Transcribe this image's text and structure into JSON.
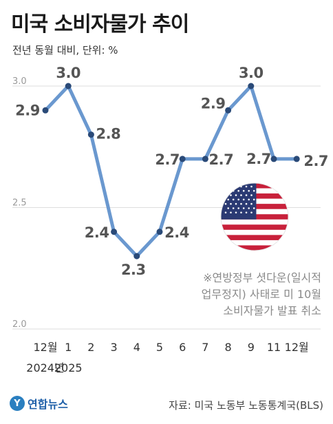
{
  "header": {
    "title": "미국 소비자물가 추이",
    "subtitle": "전년 동월 대비, 단위: %"
  },
  "note": [
    "※연방정부 셧다운(일시적",
    "업무정지) 사태로 미 10월",
    "소비자물가 발표 취소"
  ],
  "footer": {
    "logo_text": "연합뉴스",
    "source": "자료: 미국 노동부 노동통계국(BLS)"
  },
  "colors": {
    "line": "#6a98cf",
    "marker": "#2a4a78",
    "label": "#555555",
    "grid": "#dddddd"
  },
  "chart_data": {
    "type": "line",
    "title": "미국 소비자물가 추이",
    "ylabel": "전년 동월 대비, 단위: %",
    "ylim": [
      2.0,
      3.0
    ],
    "y_ticks": [
      "3.0",
      "2.5",
      "2.0"
    ],
    "grid": true,
    "categories": [
      "12월",
      "1",
      "2",
      "3",
      "4",
      "5",
      "6",
      "7",
      "8",
      "9",
      "11",
      "12월"
    ],
    "category_sublabels": [
      "2024년",
      "2025",
      "",
      "",
      "",
      "",
      "",
      "",
      "",
      "",
      "",
      ""
    ],
    "values": [
      2.9,
      3.0,
      2.8,
      2.4,
      2.3,
      2.4,
      2.7,
      2.7,
      2.9,
      3.0,
      2.7,
      2.7
    ],
    "data_labels": [
      "2.9",
      "3.0",
      "2.8",
      "2.4",
      "2.3",
      "2.4",
      "2.7",
      "2.7",
      "2.9",
      "3.0",
      "2.7",
      "2.7"
    ]
  }
}
